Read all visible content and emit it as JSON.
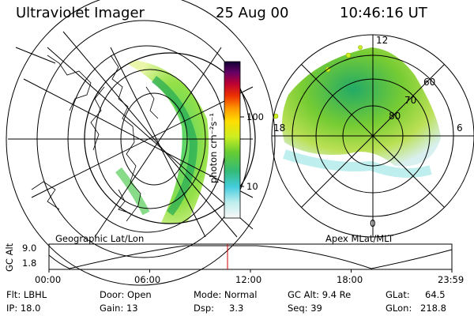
{
  "header": {
    "instrument": "Ultraviolet Imager",
    "date": "25 Aug 00",
    "time": "10:46:16 UT"
  },
  "colorbar": {
    "unit_label": "photon cm⁻²s⁻¹",
    "ticks": [
      "100",
      "10"
    ]
  },
  "left_panel": {
    "caption": "Geographic Lat/Lon"
  },
  "right_panel": {
    "caption": "Apex MLat/MLT",
    "lat_labels": [
      "80",
      "70",
      "60"
    ],
    "mlt_labels": [
      "12",
      "18",
      "6",
      "0"
    ]
  },
  "timeline": {
    "axis_title": "GC Alt",
    "y_ticks": [
      "9.0",
      "1.8"
    ],
    "x_ticks": [
      "00:00",
      "06:00",
      "12:00",
      "18:00",
      "23:59"
    ],
    "current_marker_color": "#cc0000"
  },
  "info": {
    "flt": "Flt: LBHL",
    "ip": "IP: 18.0",
    "door": "Door: Open",
    "gain": "Gain: 13",
    "mode": "Mode: Normal",
    "dsp_label": "Dsp:",
    "dsp_value": "3.3",
    "gc_alt": "GC Alt: 9.4 Re",
    "seq": "Seq: 39",
    "glat_label": "GLat:",
    "glat_value": "64.5",
    "glon_label": "GLon:",
    "glon_value": "218.8"
  }
}
